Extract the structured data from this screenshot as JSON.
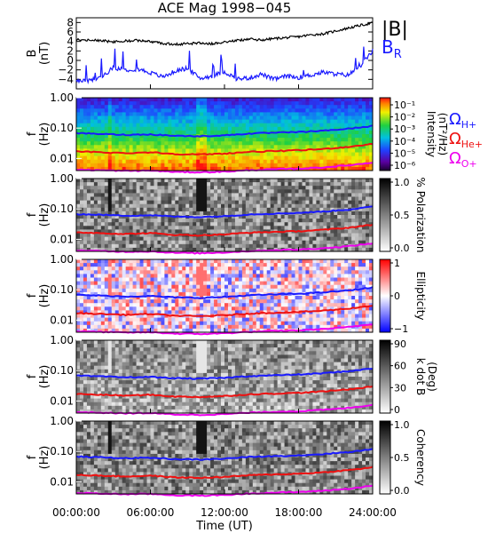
{
  "title": "ACE Mag 1998−045",
  "xlabel": "Time (UT)",
  "x_ticks": [
    "00:00:00",
    "06:00:00",
    "12:00:00",
    "18:00:00",
    "24:00:00"
  ],
  "colors": {
    "B_total": "#000000",
    "B_R": "#1a1aff",
    "H": "#1a1aff",
    "He": "#ee1111",
    "O": "#ee00ee"
  },
  "chart_data": [
    {
      "type": "line",
      "ylabel": "B",
      "ylabel_unit": "(nT)",
      "ylim": [
        -6,
        9
      ],
      "y_ticks": [
        "8",
        "6",
        "4",
        "2",
        "0",
        "−2",
        "−4"
      ],
      "x_hours": [
        0,
        1,
        2,
        3,
        4,
        5,
        6,
        7,
        8,
        9,
        10,
        11,
        12,
        13,
        14,
        15,
        16,
        17,
        18,
        19,
        20,
        21,
        22,
        23,
        24
      ],
      "series": [
        {
          "name": "|B|",
          "values": [
            4.4,
            4.3,
            4.2,
            3.9,
            4.1,
            4.2,
            4.0,
            3.6,
            3.4,
            3.5,
            3.7,
            3.5,
            3.9,
            4.2,
            4.5,
            4.3,
            4.6,
            4.8,
            5.0,
            5.4,
            5.6,
            6.2,
            6.8,
            7.4,
            7.9
          ]
        },
        {
          "name": "B",
          "subscript": "R",
          "values": [
            -4.4,
            -4.3,
            -3.6,
            -1.5,
            -2.0,
            -1.8,
            -2.6,
            -3.5,
            -2.3,
            -1.6,
            -3.8,
            -3.3,
            -2.4,
            -3.9,
            -3.7,
            -2.9,
            -4.0,
            -3.3,
            -3.6,
            -3.1,
            -2.5,
            -2.9,
            -3.1,
            -1.2,
            2.0
          ]
        }
      ]
    },
    {
      "type": "heatmap",
      "ylabel": "f",
      "ylabel_unit": "(Hz)",
      "y_scale": "log",
      "ylim": [
        0.004,
        1.0
      ],
      "y_ticks": [
        "1.00",
        "0.10",
        "0.01"
      ],
      "colorbar": {
        "label": "Intensity",
        "unit": "(nT²/Hz)",
        "scale": "log",
        "ticks": [
          "10⁻¹",
          "10⁻²",
          "10⁻³",
          "10⁻⁴",
          "10⁻⁵",
          "10⁻⁶"
        ]
      },
      "legend": [
        {
          "symbol": "Ω",
          "subscript": "H+",
          "color": "#1a1aff"
        },
        {
          "symbol": "Ω",
          "subscript": "He+",
          "color": "#ee1111"
        },
        {
          "symbol": "Ω",
          "subscript": "O+",
          "color": "#ee00ee"
        }
      ]
    },
    {
      "type": "heatmap",
      "ylabel": "f",
      "ylabel_unit": "(Hz)",
      "y_ticks": [
        "1.00",
        "0.10",
        "0.01"
      ],
      "colorbar": {
        "label": "% Polarization",
        "ticks": [
          "1.0",
          "0.5",
          "0.0"
        ]
      }
    },
    {
      "type": "heatmap",
      "ylabel": "f",
      "ylabel_unit": "(Hz)",
      "y_ticks": [
        "1.00",
        "0.10",
        "0.01"
      ],
      "colorbar": {
        "label": "Ellipticity",
        "ticks": [
          "1",
          "0",
          "−1"
        ]
      }
    },
    {
      "type": "heatmap",
      "ylabel": "f",
      "ylabel_unit": "(Hz)",
      "y_ticks": [
        "1.00",
        "0.10",
        "0.01"
      ],
      "colorbar": {
        "label": "k dot B",
        "unit": "(Deg)",
        "ticks": [
          "90",
          "60",
          "30",
          "0"
        ]
      }
    },
    {
      "type": "heatmap",
      "ylabel": "f",
      "ylabel_unit": "(Hz)",
      "y_ticks": [
        "1.00",
        "0.10",
        "0.01"
      ],
      "colorbar": {
        "label": "Coherency",
        "ticks": [
          "1.0",
          "0.5",
          "0.0"
        ]
      }
    }
  ],
  "gyro_freq_hz": {
    "x_hours": [
      0,
      2,
      4,
      6,
      8,
      10,
      12,
      14,
      16,
      18,
      20,
      22,
      24
    ],
    "H+": [
      0.068,
      0.064,
      0.06,
      0.062,
      0.056,
      0.054,
      0.058,
      0.066,
      0.07,
      0.074,
      0.082,
      0.095,
      0.118
    ],
    "He+": [
      0.017,
      0.016,
      0.015,
      0.016,
      0.014,
      0.0135,
      0.0145,
      0.0165,
      0.0175,
      0.0185,
      0.0205,
      0.024,
      0.03
    ],
    "O+": [
      0.0043,
      0.0041,
      0.0039,
      0.004,
      0.0036,
      0.0035,
      0.0037,
      0.0041,
      0.0044,
      0.0046,
      0.0051,
      0.0059,
      0.0074
    ]
  }
}
